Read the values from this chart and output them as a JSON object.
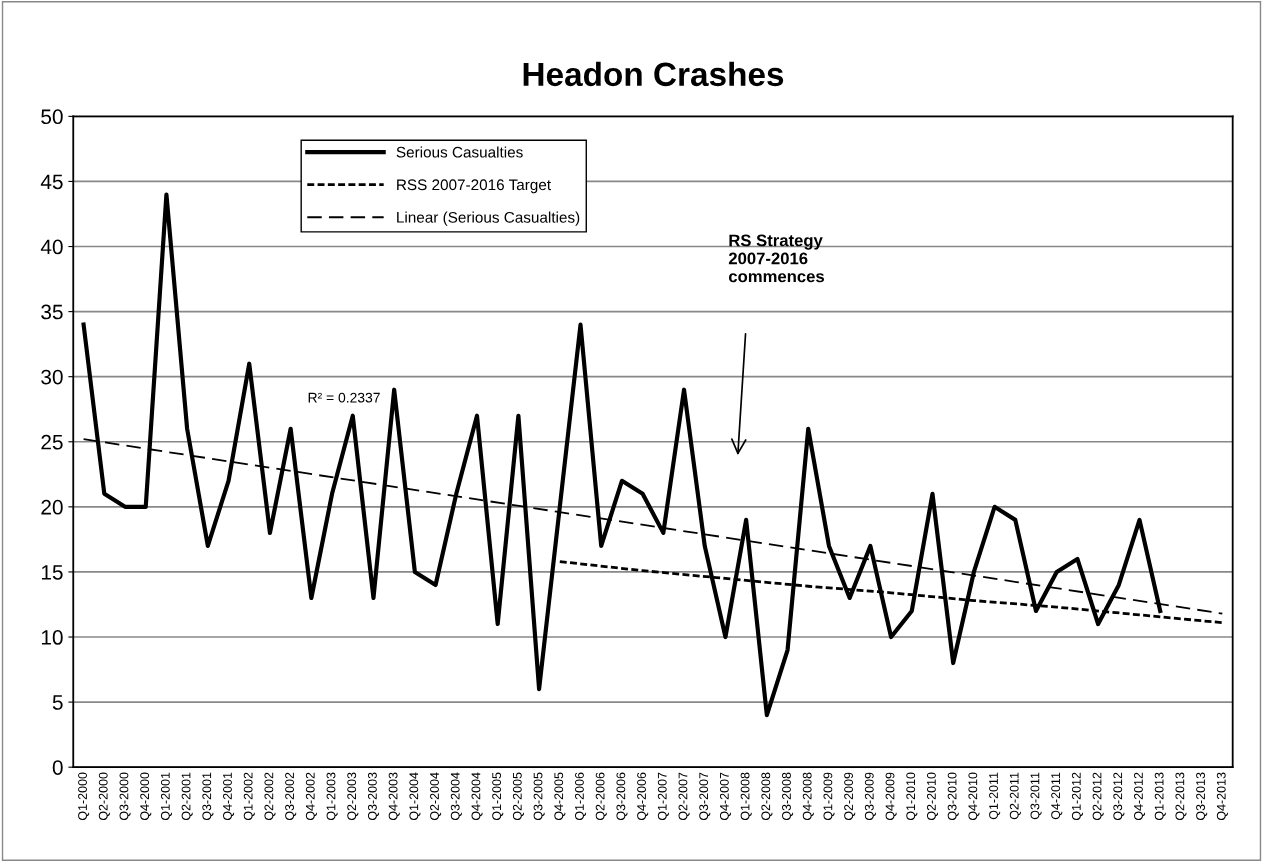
{
  "chart_data": {
    "type": "line",
    "title": "Headon Crashes",
    "categories": [
      "Q1-2000",
      "Q2-2000",
      "Q3-2000",
      "Q4-2000",
      "Q1-2001",
      "Q2-2001",
      "Q3-2001",
      "Q4-2001",
      "Q1-2002",
      "Q2-2002",
      "Q3-2002",
      "Q4-2002",
      "Q1-2003",
      "Q2-2003",
      "Q3-2003",
      "Q4-2003",
      "Q1-2004",
      "Q2-2004",
      "Q3-2004",
      "Q4-2004",
      "Q1-2005",
      "Q2-2005",
      "Q3-2005",
      "Q4-2005",
      "Q1-2006",
      "Q2-2006",
      "Q3-2006",
      "Q4-2006",
      "Q1-2007",
      "Q2-2007",
      "Q3-2007",
      "Q4-2007",
      "Q1-2008",
      "Q2-2008",
      "Q3-2008",
      "Q4-2008",
      "Q1-2009",
      "Q2-2009",
      "Q3-2009",
      "Q4-2009",
      "Q1-2010",
      "Q2-2010",
      "Q3-2010",
      "Q4-2010",
      "Q1-2011",
      "Q2-2011",
      "Q3-2011",
      "Q4-2011",
      "Q1-2012",
      "Q2-2012",
      "Q3-2012",
      "Q4-2012",
      "Q1-2013",
      "Q2-2013",
      "Q3-2013",
      "Q4-2013"
    ],
    "series": [
      {
        "name": "Serious Casualties",
        "color": "#000000",
        "line_style": "solid",
        "values": [
          34,
          21,
          20,
          20,
          44,
          26,
          17,
          22,
          31,
          18,
          26,
          13,
          21,
          27,
          13,
          29,
          15,
          14,
          21,
          27,
          11,
          27,
          6,
          20,
          34,
          17,
          22,
          21,
          18,
          29,
          17,
          10,
          19,
          4,
          9,
          26,
          17,
          13,
          17,
          10,
          12,
          21,
          8,
          15,
          20,
          19,
          12,
          15,
          16,
          11,
          14,
          19,
          12,
          null,
          null,
          null
        ]
      },
      {
        "name": "RSS 2007-2016 Target",
        "color": "#000000",
        "line_style": "dotted",
        "x": [
          "Q4-2005",
          "Q4-2006",
          "Q4-2007",
          "Q4-2008",
          "Q4-2009",
          "Q4-2010",
          "Q4-2011",
          "Q4-2012",
          "Q4-2013"
        ],
        "values": [
          15.8,
          15.1,
          14.5,
          13.9,
          13.4,
          12.8,
          12.3,
          11.7,
          11.1
        ]
      },
      {
        "name": "Linear (Serious Casualties)",
        "color": "#000000",
        "line_style": "dashed",
        "x": [
          "Q1-2000",
          "Q4-2013"
        ],
        "values": [
          25.2,
          11.8
        ]
      }
    ],
    "ylim": [
      0,
      50
    ],
    "yticks": [
      0,
      5,
      10,
      15,
      20,
      25,
      30,
      35,
      40,
      45,
      50
    ],
    "grid": "y",
    "legend": "top left",
    "marker": "none",
    "annotations": [
      "R² = 0.2337",
      "RS Strategy\n2007-2016\ncommences"
    ]
  }
}
